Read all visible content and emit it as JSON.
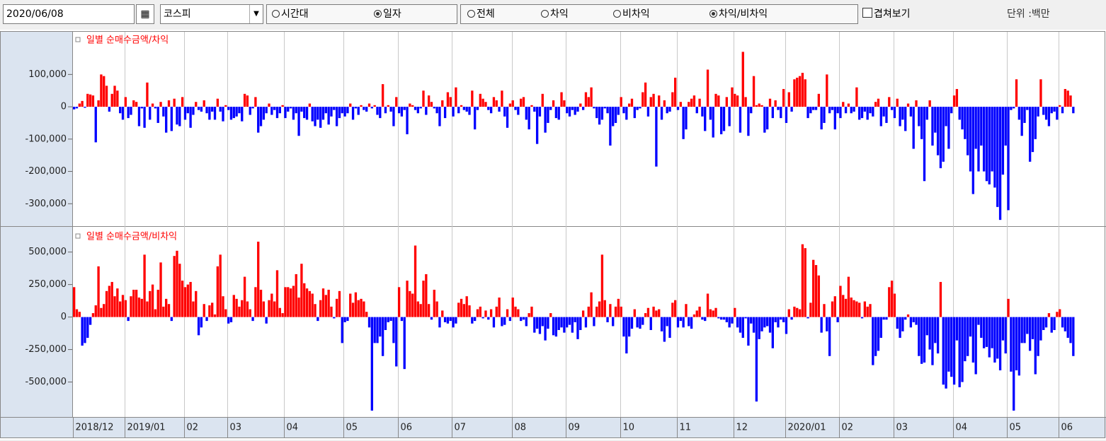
{
  "toolbar": {
    "date": "2020/06/08",
    "market": "코스피",
    "period_options": [
      "시간대",
      "일자"
    ],
    "period_selected": 1,
    "kind_options": [
      "전체",
      "차익",
      "비차익",
      "차익/비차익"
    ],
    "kind_selected": 3,
    "overlay": "겹쳐보기",
    "unit": "단위 :백만"
  },
  "chart_data": [
    {
      "type": "bar",
      "title": "일별 순매수금액/차익",
      "positive_color": "#ff0000",
      "negative_color": "#0000ff",
      "ylim": [
        -365000,
        232000
      ],
      "yticks": [
        {
          "value": -300000,
          "label": "-300,000"
        },
        {
          "value": -200000,
          "label": "-200,000"
        },
        {
          "value": -100000,
          "label": "-100,000"
        },
        0,
        {
          "value": 100000,
          "label": "100,000"
        }
      ],
      "values": [
        -8000,
        -5000,
        10000,
        18000,
        -3000,
        40000,
        38000,
        35000,
        -110000,
        20000,
        100000,
        95000,
        65000,
        -15000,
        40000,
        65000,
        50000,
        -20000,
        -40000,
        30000,
        -35000,
        -25000,
        20000,
        15000,
        -60000,
        -5000,
        -65000,
        75000,
        -40000,
        10000,
        -5000,
        -50000,
        15000,
        -30000,
        -80000,
        20000,
        -75000,
        25000,
        -55000,
        -60000,
        30000,
        -40000,
        -20000,
        -65000,
        -25000,
        15000,
        -10000,
        -15000,
        20000,
        -20000,
        -40000,
        -15000,
        -40000,
        25000,
        -15000,
        -45000,
        5000,
        -10000,
        -40000,
        -35000,
        -30000,
        -20000,
        -45000,
        40000,
        35000,
        -25000,
        -5000,
        30000,
        -80000,
        -60000,
        -40000,
        -20000,
        10000,
        -25000,
        -10000,
        -35000,
        -20000,
        5000,
        -35000,
        -15000,
        -5000,
        -40000,
        -20000,
        -90000,
        -15000,
        -35000,
        -40000,
        10000,
        -45000,
        -60000,
        -40000,
        -65000,
        -40000,
        -20000,
        -55000,
        -30000,
        -10000,
        -60000,
        -35000,
        -20000,
        -30000,
        -20000,
        10000,
        -40000,
        -5000,
        -25000,
        5000,
        -10000,
        -15000,
        10000,
        -5000,
        5000,
        -25000,
        -35000,
        70000,
        -20000,
        5000,
        -15000,
        -60000,
        30000,
        -20000,
        -30000,
        -10000,
        -85000,
        10000,
        5000,
        -10000,
        -20000,
        -5000,
        50000,
        -25000,
        35000,
        15000,
        -5000,
        -20000,
        -60000,
        20000,
        -35000,
        45000,
        30000,
        -30000,
        60000,
        -20000,
        5000,
        -10000,
        -15000,
        -25000,
        50000,
        -70000,
        -10000,
        40000,
        25000,
        15000,
        -10000,
        -20000,
        30000,
        20000,
        -15000,
        50000,
        -30000,
        -65000,
        10000,
        20000,
        -10000,
        -25000,
        25000,
        30000,
        -40000,
        -70000,
        5000,
        -15000,
        -115000,
        -30000,
        40000,
        -80000,
        -50000,
        -10000,
        20000,
        -35000,
        -40000,
        45000,
        20000,
        -20000,
        -30000,
        -10000,
        -25000,
        -15000,
        10000,
        -10000,
        45000,
        30000,
        60000,
        -5000,
        -35000,
        -55000,
        -40000,
        -5000,
        -20000,
        -120000,
        -60000,
        -50000,
        -25000,
        30000,
        -20000,
        -40000,
        10000,
        25000,
        -35000,
        -10000,
        -5000,
        45000,
        75000,
        -30000,
        30000,
        40000,
        -185000,
        35000,
        -40000,
        20000,
        -20000,
        -15000,
        45000,
        90000,
        -10000,
        15000,
        -100000,
        -70000,
        15000,
        25000,
        35000,
        -20000,
        25000,
        -30000,
        -75000,
        115000,
        -40000,
        -95000,
        40000,
        35000,
        -85000,
        -75000,
        30000,
        -60000,
        60000,
        40000,
        35000,
        -80000,
        170000,
        30000,
        -90000,
        -20000,
        95000,
        5000,
        10000,
        5000,
        -80000,
        -70000,
        25000,
        -35000,
        20000,
        -10000,
        -35000,
        55000,
        -50000,
        45000,
        -15000,
        85000,
        90000,
        95000,
        105000,
        85000,
        -35000,
        -20000,
        -10000,
        -10000,
        40000,
        -70000,
        -50000,
        100000,
        -20000,
        -10000,
        -70000,
        -20000,
        -35000,
        15000,
        -20000,
        10000,
        -20000,
        -15000,
        60000,
        -40000,
        -35000,
        -15000,
        -40000,
        -20000,
        -30000,
        15000,
        25000,
        -60000,
        -30000,
        -50000,
        30000,
        -10000,
        -35000,
        25000,
        -60000,
        -40000,
        -75000,
        10000,
        -30000,
        -130000,
        20000,
        -60000,
        -100000,
        -230000,
        -40000,
        20000,
        -120000,
        -80000,
        -150000,
        -190000,
        -170000,
        -60000,
        -130000,
        -20000,
        35000,
        55000,
        -40000,
        -70000,
        -100000,
        -150000,
        -200000,
        -270000,
        -130000,
        -200000,
        -120000,
        -200000,
        -230000,
        -240000,
        -200000,
        -250000,
        -310000,
        -350000,
        -210000,
        -120000,
        -320000,
        -10000,
        -5000,
        85000,
        -40000,
        -90000,
        -50000,
        -10000,
        -170000,
        -140000,
        -100000,
        -30000,
        85000,
        -25000,
        -40000,
        -60000,
        -20000,
        -15000,
        -40000,
        5000,
        -20000,
        55000,
        50000,
        35000,
        -20000
      ]
    },
    {
      "type": "bar",
      "title": "일별 순매수금액/비차익",
      "positive_color": "#ff0000",
      "negative_color": "#0000ff",
      "ylim": [
        -758000,
        683000
      ],
      "yticks": [
        {
          "value": -500000,
          "label": "-500,000"
        },
        {
          "value": -250000,
          "label": "-250,000"
        },
        0,
        {
          "value": 250000,
          "label": "250,000"
        },
        {
          "value": 500000,
          "label": "500,000"
        }
      ],
      "categories": [
        "2018/12",
        null,
        null,
        null,
        null,
        null,
        null,
        null,
        null,
        null,
        null,
        null,
        null,
        null,
        null,
        null,
        null,
        null,
        null,
        "2019/01",
        null,
        null,
        null,
        null,
        null,
        null,
        null,
        null,
        null,
        null,
        null,
        null,
        null,
        null,
        null,
        null,
        null,
        null,
        null,
        null,
        null,
        "02",
        null,
        null,
        null,
        null,
        null,
        null,
        null,
        null,
        null,
        null,
        null,
        null,
        null,
        null,
        null,
        "03",
        null,
        null,
        null,
        null,
        null,
        null,
        null,
        null,
        null,
        null,
        null,
        null,
        null,
        null,
        null,
        null,
        null,
        null,
        null,
        null,
        "04",
        null,
        null,
        null,
        null,
        null,
        null,
        null,
        null,
        null,
        null,
        null,
        null,
        null,
        null,
        null,
        null,
        null,
        null,
        null,
        null,
        null,
        "05",
        null,
        null,
        null,
        null,
        null,
        null,
        null,
        null,
        null,
        null,
        null,
        null,
        null,
        null,
        null,
        null,
        null,
        null,
        null,
        "06",
        null,
        null,
        null,
        null,
        null,
        null,
        null,
        null,
        null,
        null,
        null,
        null,
        null,
        null,
        null,
        null,
        null,
        null,
        null,
        "07",
        null,
        null,
        null,
        null,
        null,
        null,
        null,
        null,
        null,
        null,
        null,
        null,
        null,
        null,
        null,
        null,
        null,
        null,
        null,
        null,
        null,
        "08",
        null,
        null,
        null,
        null,
        null,
        null,
        null,
        null,
        null,
        null,
        null,
        null,
        null,
        null,
        null,
        null,
        null,
        null,
        null,
        "09",
        null,
        null,
        null,
        null,
        null,
        null,
        null,
        null,
        null,
        null,
        null,
        null,
        null,
        null,
        null,
        null,
        null,
        null,
        null,
        "10",
        null,
        null,
        null,
        null,
        null,
        null,
        null,
        null,
        null,
        null,
        null,
        null,
        null,
        null,
        null,
        null,
        null,
        null,
        null,
        null,
        "11",
        null,
        null,
        null,
        null,
        null,
        null,
        null,
        null,
        null,
        null,
        null,
        null,
        null,
        null,
        null,
        null,
        null,
        null,
        null,
        null,
        "12",
        null,
        null,
        null,
        null,
        null,
        null,
        null,
        null,
        null,
        null,
        null,
        null,
        null,
        null,
        null,
        null,
        null,
        null,
        "2020/01",
        null,
        null,
        null,
        null,
        null,
        null,
        null,
        null,
        null,
        null,
        null,
        null,
        null,
        null,
        null,
        null,
        null,
        null,
        null,
        "02",
        null,
        null,
        null,
        null,
        null,
        null,
        null,
        null,
        null,
        null,
        null,
        null,
        null,
        null,
        null,
        null,
        null,
        null,
        null,
        "03",
        null,
        null,
        null,
        null,
        null,
        null,
        null,
        null,
        null,
        null,
        null,
        null,
        null,
        null,
        null,
        null,
        null,
        null,
        null,
        null,
        null,
        "04",
        null,
        null,
        null,
        null,
        null,
        null,
        null,
        null,
        null,
        null,
        null,
        null,
        null,
        null,
        null,
        null,
        null,
        null,
        null,
        "05",
        null,
        null,
        null,
        null,
        null,
        null,
        null,
        null,
        null,
        null,
        null,
        null,
        null,
        null,
        null,
        null,
        null,
        null,
        "06",
        null,
        null,
        null,
        null,
        null
      ],
      "values": [
        230000,
        60000,
        40000,
        -220000,
        -200000,
        -160000,
        -60000,
        30000,
        90000,
        390000,
        70000,
        100000,
        200000,
        240000,
        270000,
        160000,
        220000,
        120000,
        170000,
        130000,
        -30000,
        160000,
        210000,
        210000,
        150000,
        140000,
        480000,
        120000,
        200000,
        250000,
        60000,
        210000,
        420000,
        80000,
        140000,
        100000,
        -30000,
        470000,
        510000,
        410000,
        280000,
        230000,
        250000,
        270000,
        120000,
        200000,
        -140000,
        -80000,
        100000,
        -30000,
        90000,
        110000,
        20000,
        390000,
        480000,
        160000,
        60000,
        -50000,
        -40000,
        170000,
        140000,
        80000,
        130000,
        310000,
        120000,
        60000,
        -30000,
        230000,
        580000,
        210000,
        120000,
        -50000,
        130000,
        180000,
        120000,
        360000,
        70000,
        30000,
        230000,
        230000,
        220000,
        240000,
        330000,
        150000,
        410000,
        260000,
        220000,
        200000,
        180000,
        100000,
        -30000,
        130000,
        220000,
        170000,
        210000,
        80000,
        -10000,
        140000,
        200000,
        -200000,
        -40000,
        -30000,
        180000,
        110000,
        190000,
        130000,
        140000,
        120000,
        40000,
        -80000,
        -720000,
        -200000,
        -200000,
        -150000,
        -300000,
        -100000,
        -40000,
        -30000,
        -200000,
        -380000,
        230000,
        -30000,
        -400000,
        280000,
        200000,
        180000,
        550000,
        120000,
        100000,
        280000,
        330000,
        100000,
        -20000,
        210000,
        120000,
        -80000,
        50000,
        -40000,
        -50000,
        -30000,
        -80000,
        -50000,
        110000,
        140000,
        100000,
        160000,
        90000,
        -50000,
        -30000,
        60000,
        80000,
        -10000,
        50000,
        -20000,
        60000,
        -80000,
        80000,
        150000,
        -70000,
        -60000,
        60000,
        -30000,
        150000,
        80000,
        60000,
        -30000,
        -20000,
        -70000,
        30000,
        80000,
        -120000,
        -90000,
        -130000,
        -70000,
        -180000,
        -90000,
        30000,
        -140000,
        -150000,
        -100000,
        -80000,
        -120000,
        -80000,
        -60000,
        -120000,
        -40000,
        -170000,
        -100000,
        50000,
        -80000,
        80000,
        190000,
        -70000,
        80000,
        120000,
        480000,
        130000,
        -40000,
        100000,
        -70000,
        80000,
        140000,
        80000,
        -150000,
        -280000,
        -150000,
        -90000,
        60000,
        -80000,
        -90000,
        -60000,
        30000,
        70000,
        -100000,
        80000,
        50000,
        60000,
        -110000,
        -190000,
        -70000,
        -160000,
        110000,
        130000,
        -80000,
        -30000,
        -80000,
        100000,
        -70000,
        -90000,
        20000,
        50000,
        80000,
        -20000,
        -30000,
        180000,
        60000,
        50000,
        70000,
        -10000,
        -20000,
        -20000,
        -40000,
        -80000,
        -50000,
        70000,
        -80000,
        -120000,
        -160000,
        -10000,
        -220000,
        -50000,
        -120000,
        -650000,
        -170000,
        -110000,
        -80000,
        -70000,
        -120000,
        -240000,
        -40000,
        -80000,
        -20000,
        -40000,
        -130000,
        60000,
        -20000,
        80000,
        70000,
        60000,
        560000,
        530000,
        -10000,
        110000,
        440000,
        400000,
        320000,
        -120000,
        100000,
        -110000,
        -300000,
        120000,
        160000,
        -40000,
        240000,
        170000,
        140000,
        310000,
        150000,
        130000,
        120000,
        110000,
        -10000,
        120000,
        80000,
        100000,
        -370000,
        -300000,
        -260000,
        -160000,
        -20000,
        -20000,
        230000,
        280000,
        180000,
        -90000,
        -160000,
        -110000,
        -20000,
        20000,
        -80000,
        -40000,
        -60000,
        -300000,
        -360000,
        -350000,
        -140000,
        -250000,
        -370000,
        -200000,
        -280000,
        270000,
        -520000,
        -550000,
        -420000,
        -460000,
        -520000,
        -180000,
        -540000,
        -500000,
        -340000,
        -300000,
        -150000,
        -350000,
        -440000,
        -60000,
        -160000,
        -240000,
        -230000,
        -310000,
        -240000,
        -350000,
        -320000,
        -410000,
        -180000,
        -280000,
        140000,
        -420000,
        -720000,
        -410000,
        -450000,
        -200000,
        -200000,
        -130000,
        -260000,
        -170000,
        -440000,
        -300000,
        -180000,
        -100000,
        -80000,
        30000,
        -120000,
        -100000,
        40000,
        60000,
        -80000,
        -110000,
        -160000,
        -200000,
        -300000
      ]
    }
  ]
}
